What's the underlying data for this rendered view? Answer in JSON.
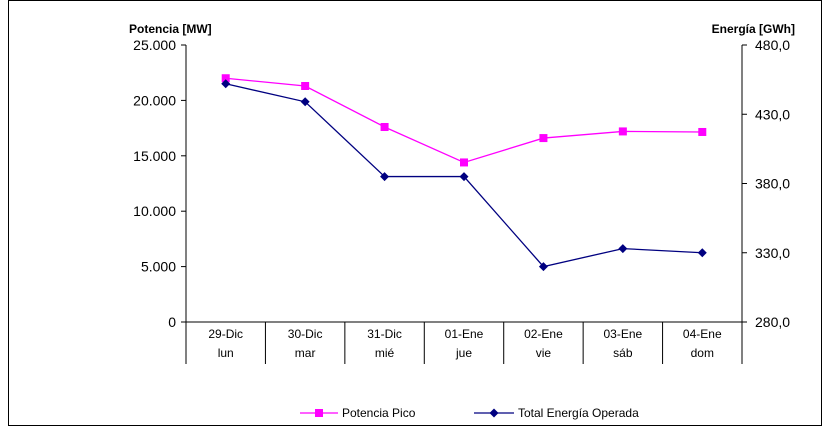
{
  "chart_data": {
    "type": "line",
    "y_left_title": "Potencia [MW]",
    "y_right_title": "Energía [GWh]",
    "categories": [
      {
        "date": "29-Dic",
        "day": "lun"
      },
      {
        "date": "30-Dic",
        "day": "mar"
      },
      {
        "date": "31-Dic",
        "day": "mié"
      },
      {
        "date": "01-Ene",
        "day": "jue"
      },
      {
        "date": "02-Ene",
        "day": "vie"
      },
      {
        "date": "03-Ene",
        "day": "sáb"
      },
      {
        "date": "04-Ene",
        "day": "dom"
      }
    ],
    "y_left": {
      "min": 0,
      "max": 25000,
      "ticks": [
        "0",
        "5.000",
        "10.000",
        "15.000",
        "20.000",
        "25.000"
      ]
    },
    "y_right": {
      "min": 280,
      "max": 480,
      "ticks": [
        "280,0",
        "330,0",
        "380,0",
        "430,0",
        "480,0"
      ]
    },
    "series": [
      {
        "name": "Potencia Pico",
        "axis": "left",
        "color": "#ff00ff",
        "marker": "square",
        "values": [
          22000,
          21300,
          17600,
          14400,
          16600,
          17200,
          17150
        ]
      },
      {
        "name": "Total Energía Operada",
        "axis": "right",
        "color": "#000080",
        "marker": "diamond",
        "values": [
          452,
          439,
          385,
          385,
          320,
          333,
          330
        ]
      }
    ],
    "legend_position": "bottom",
    "grid": false
  }
}
